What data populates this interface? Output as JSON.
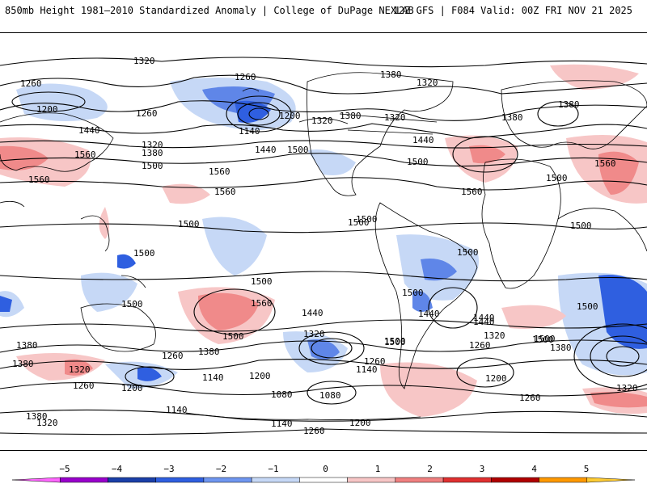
{
  "header": {
    "title": "850mb Height 1981–2010 Standardized Anomaly | College of DuPage NEXLAB",
    "run_info": "12Z GFS | F084 Valid: 00Z FRI NOV 21 2025"
  },
  "map": {
    "contour_labels": [
      "1320",
      "1260",
      "1200",
      "1260",
      "1140",
      "1260",
      "1320",
      "1380",
      "1320",
      "1380",
      "1320",
      "1380",
      "1200",
      "1440",
      "1440",
      "1560",
      "1380",
      "1320",
      "1500",
      "1500",
      "1560",
      "1440",
      "1500",
      "1380",
      "1500",
      "1560",
      "1560",
      "1560",
      "1500",
      "1500",
      "1500",
      "1560",
      "1500",
      "1500",
      "1500",
      "1500",
      "1500",
      "1500",
      "1500",
      "1440",
      "1500",
      "1440",
      "1560",
      "1500",
      "1440",
      "1380",
      "1320",
      "1380",
      "1260",
      "1320",
      "1260",
      "1260",
      "1140",
      "1200",
      "1140",
      "1200",
      "1080",
      "1080",
      "1140",
      "1200",
      "1260",
      "1140",
      "1260",
      "1320",
      "1380",
      "1440",
      "1380",
      "1320",
      "1260",
      "1200",
      "1500",
      "1500",
      "1380",
      "1320",
      "1500"
    ],
    "layers": [
      "anomaly-shading",
      "height-contours",
      "coastlines"
    ]
  },
  "colorbar": {
    "ticks": [
      "−5",
      "−4",
      "−3",
      "−2",
      "−1",
      "0",
      "1",
      "2",
      "3",
      "4",
      "5"
    ],
    "colors": [
      "#ff66ff",
      "#9900cc",
      "#1a3fa8",
      "#2f5fe0",
      "#6f96f0",
      "#c6d8f6",
      "#ffffff",
      "#f7c6c6",
      "#f08080",
      "#e03030",
      "#b00000",
      "#ff9900",
      "#ffcc33"
    ]
  },
  "colors": {
    "positive_anomaly": "#f08a8a",
    "negative_anomaly": "#5f86e8",
    "contour": "#000000",
    "coast": "#000000"
  }
}
